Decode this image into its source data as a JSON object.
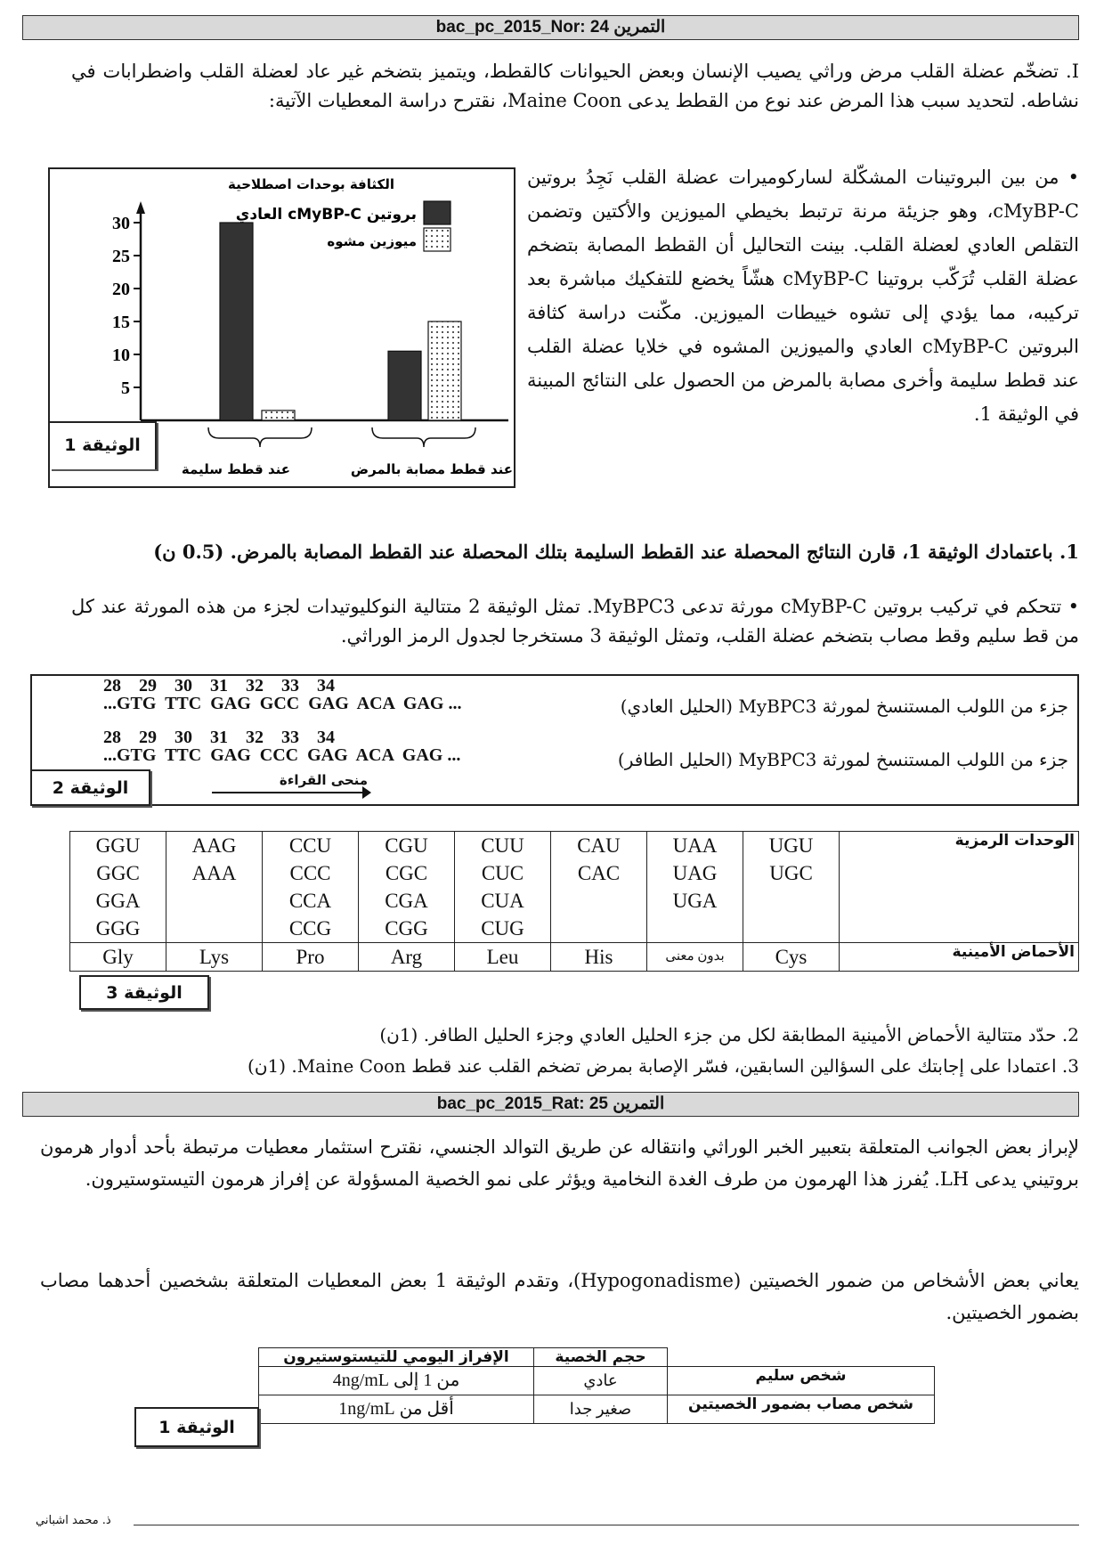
{
  "ex1": {
    "header": "bac_pc_2015_Nor: 24 التمرين",
    "intro": "I. تضخّم عضلة القلب مرض وراثي يصيب الإنسان وبعض الحيوانات كالقطط، ويتميز بتضخم غير عاد لعضلة القلب واضطرابات في نشاطه. لتحديد سبب هذا المرض عند نوع من القطط يدعى Maine Coon، نقترح دراسة المعطيات الآتية:",
    "bullet1": "• من بين البروتينات المشكّلة لساركوميرات عضلة القلب نَجِدُ بروتين cMyBP-C، وهو جزيئة مرنة ترتبط بخيطي الميوزين والأكتين وتضمن التقلص العادي لعضلة القلب. بينت التحاليل أن القطط المصابة بتضخم عضلة القلب تُرَكّب بروتينا cMyBP-C هشّاً يخضع للتفكيك مباشرة بعد تركيبه، مما يؤدي إلى تشوه خييطات الميوزين. مكّنت دراسة كثافة البروتين cMyBP-C العادي والميوزين المشوه في خلايا عضلة القلب عند قطط سليمة وأخرى مصابة بالمرض من الحصول على النتائج المبينة في الوثيقة 1.",
    "q1": "1. باعتمادك الوثيقة 1، قارن النتائج المحصلة عند القطط السليمة بتلك المحصلة عند القطط المصابة بالمرض. (0.5 ن)",
    "bullet2": "• تتحكم في تركيب بروتين cMyBP-C مورثة تدعى MyBPC3. تمثل الوثيقة 2 متتالية النوكليوتيدات لجزء من هذه المورثة عند كل من قط سليم وقط مصاب بتضخم عضلة القلب، وتمثل الوثيقة 3 مستخرجا لجدول الرمز الوراثي.",
    "doc2": {
      "label": "الوثيقة 2",
      "numbers": "28    29    30    31    32    33    34",
      "normal_seq": "...GTG  TTC  GAG  GCC  GAG  ACA  GAG ...",
      "mutant_seq": "...GTG  TTC  GAG  CCC  GAG  ACA  GAG ...",
      "normal_label": "جزء من اللولب  المستنسخ لمورثة MyBPC3 (الحليل العادي)",
      "mutant_label": "جزء من اللولب  المستنسخ لمورثة MyBPC3  (الحليل الطافر)",
      "reading": "منحى القراءة"
    },
    "doc3": {
      "label": "الوثيقة 3",
      "row_codons": "الوحدات الرمزية",
      "row_aa": "الأحماض الأمينية",
      "columns": [
        {
          "codons": "UGU\nUGC",
          "aa": "Cys"
        },
        {
          "codons": "UAA\nUAG\nUGA",
          "aa": "بدون معنى"
        },
        {
          "codons": "CAU\nCAC",
          "aa": "His"
        },
        {
          "codons": "CUU\nCUC\nCUA\nCUG",
          "aa": "Leu"
        },
        {
          "codons": "CGU\nCGC\nCGA\nCGG",
          "aa": "Arg"
        },
        {
          "codons": "CCU\nCCC\nCCA\nCCG",
          "aa": "Pro"
        },
        {
          "codons": "AAG\nAAA",
          "aa": "Lys"
        },
        {
          "codons": "GGU\nGGC\nGGA\nGGG",
          "aa": "Gly"
        }
      ]
    },
    "q2": "2. حدّد متتالية الأحماض الأمينية المطابقة لكل من جزء الحليل العادي وجزء الحليل الطافر.  (1ن)",
    "q3": "3. اعتمادا على إجابتك على السؤالين السابقين، فسّر الإصابة بمرض تضخم القلب عند قطط Maine Coon. (1ن)"
  },
  "chart_data": {
    "type": "bar",
    "ylabel": "الكثافة بوحدات اصطلاحية",
    "yticks": [
      5,
      10,
      15,
      20,
      25,
      30
    ],
    "ylim": [
      0,
      33
    ],
    "label": "الوثيقة 1",
    "categories": [
      "عند قطط سليمة",
      "عند قطط مصابة بالمرض"
    ],
    "series": [
      {
        "name": "بروتين cMyBP-C العادي",
        "values": [
          30,
          10.5
        ],
        "color": "#333333",
        "pattern": "solid"
      },
      {
        "name": "ميوزين مشوه",
        "values": [
          1.5,
          15
        ],
        "color": "#ffffff",
        "pattern": "dots"
      }
    ],
    "legend": "top-right"
  },
  "ex2": {
    "header": "bac_pc_2015_Rat: 25 التمرين",
    "p1": "لإبراز بعض الجوانب المتعلقة بتعبير الخبر الوراثي وانتقاله عن طريق التوالد الجنسي، نقترح استثمار معطيات مرتبطة بأحد أدوار هرمون بروتيني يدعى LH. يُفرز هذا الهرمون من طرف الغدة النخامية ويؤثر على نمو الخصية المسؤولة عن إفراز هرمون التيستوستيرون.",
    "p2": "يعاني بعض الأشخاص من ضمور الخصيتين (Hypogonadisme)، وتقدم الوثيقة 1 بعض المعطيات المتعلقة بشخصين أحدهما مصاب بضمور الخصيتين.",
    "table": {
      "label": "الوثيقة 1",
      "headers": [
        "حجم الخصية",
        "الإفراز اليومي للتيستوستيرون"
      ],
      "rows": [
        {
          "name": "شخص سليم",
          "size": "عادي",
          "secretion": "من 1 إلى 4ng/mL"
        },
        {
          "name": "شخص مصاب بضمور الخصيتين",
          "size": "صغير جدا",
          "secretion": "أقل من 1ng/mL"
        }
      ]
    }
  },
  "footer": "ذ. محمد اشباني"
}
